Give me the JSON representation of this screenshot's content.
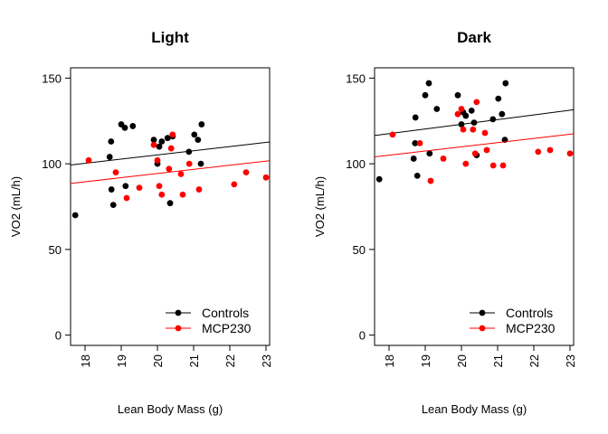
{
  "chart_data": [
    {
      "type": "scatter",
      "title": "Light",
      "xlabel": "Lean Body Mass (g)",
      "ylabel": "VO2 (mL/h)",
      "xlim": [
        17.6,
        23.1
      ],
      "ylim": [
        -6,
        156
      ],
      "xticks": [
        18,
        19,
        20,
        21,
        22,
        23
      ],
      "yticks": [
        0,
        50,
        100,
        150
      ],
      "legend_position": "bottom-right",
      "series": [
        {
          "name": "Controls",
          "color": "#000000",
          "points": [
            [
              17.73,
              70
            ],
            [
              18.68,
              104
            ],
            [
              18.72,
              113
            ],
            [
              18.73,
              85
            ],
            [
              18.78,
              76
            ],
            [
              19.0,
              123
            ],
            [
              19.1,
              121
            ],
            [
              19.12,
              87
            ],
            [
              19.32,
              122
            ],
            [
              19.9,
              114
            ],
            [
              20.0,
              100
            ],
            [
              20.05,
              110
            ],
            [
              20.12,
              113
            ],
            [
              20.28,
              115
            ],
            [
              20.35,
              77
            ],
            [
              20.42,
              116
            ],
            [
              20.87,
              107
            ],
            [
              21.02,
              117
            ],
            [
              21.12,
              114
            ],
            [
              21.2,
              100
            ],
            [
              21.22,
              123
            ]
          ],
          "trend": [
            [
              17.6,
              99.3
            ],
            [
              23.1,
              112.7
            ]
          ]
        },
        {
          "name": "MCP230",
          "color": "#ff0000",
          "points": [
            [
              18.1,
              102
            ],
            [
              18.85,
              95
            ],
            [
              19.15,
              80
            ],
            [
              19.5,
              86
            ],
            [
              19.9,
              111
            ],
            [
              20.0,
              102
            ],
            [
              20.05,
              87
            ],
            [
              20.12,
              82
            ],
            [
              20.32,
              97
            ],
            [
              20.38,
              109
            ],
            [
              20.42,
              117
            ],
            [
              20.65,
              94
            ],
            [
              20.7,
              82
            ],
            [
              20.88,
              100
            ],
            [
              21.15,
              85
            ],
            [
              22.12,
              88
            ],
            [
              22.45,
              95
            ],
            [
              23.0,
              92
            ]
          ],
          "trend": [
            [
              17.6,
              88.5
            ],
            [
              23.1,
              101.8
            ]
          ]
        }
      ]
    },
    {
      "type": "scatter",
      "title": "Dark",
      "xlabel": "Lean Body Mass (g)",
      "ylabel": "VO2 (mL/h)",
      "xlim": [
        17.6,
        23.1
      ],
      "ylim": [
        -6,
        156
      ],
      "xticks": [
        18,
        19,
        20,
        21,
        22,
        23
      ],
      "yticks": [
        0,
        50,
        100,
        150
      ],
      "legend_position": "bottom-right",
      "series": [
        {
          "name": "Controls",
          "color": "#000000",
          "points": [
            [
              17.73,
              91
            ],
            [
              18.68,
              103
            ],
            [
              18.72,
              112
            ],
            [
              18.73,
              127
            ],
            [
              18.78,
              93
            ],
            [
              19.0,
              140
            ],
            [
              19.1,
              147
            ],
            [
              19.12,
              106
            ],
            [
              19.32,
              132
            ],
            [
              19.9,
              140
            ],
            [
              20.0,
              123
            ],
            [
              20.05,
              130
            ],
            [
              20.12,
              128
            ],
            [
              20.28,
              131
            ],
            [
              20.35,
              124
            ],
            [
              20.42,
              105
            ],
            [
              20.87,
              126
            ],
            [
              21.02,
              138
            ],
            [
              21.12,
              129
            ],
            [
              21.2,
              114
            ],
            [
              21.22,
              147
            ]
          ],
          "trend": [
            [
              17.6,
              116.5
            ],
            [
              23.1,
              131.5
            ]
          ]
        },
        {
          "name": "MCP230",
          "color": "#ff0000",
          "points": [
            [
              18.1,
              117
            ],
            [
              18.85,
              112
            ],
            [
              19.15,
              90
            ],
            [
              19.5,
              103
            ],
            [
              19.9,
              129
            ],
            [
              20.0,
              132
            ],
            [
              20.05,
              120
            ],
            [
              20.12,
              100
            ],
            [
              20.32,
              120
            ],
            [
              20.38,
              106
            ],
            [
              20.42,
              136
            ],
            [
              20.65,
              118
            ],
            [
              20.7,
              108
            ],
            [
              20.88,
              99
            ],
            [
              21.15,
              99
            ],
            [
              22.12,
              107
            ],
            [
              22.45,
              108
            ],
            [
              23.0,
              106
            ]
          ],
          "trend": [
            [
              17.6,
              104
            ],
            [
              23.1,
              117.5
            ]
          ]
        }
      ]
    }
  ]
}
